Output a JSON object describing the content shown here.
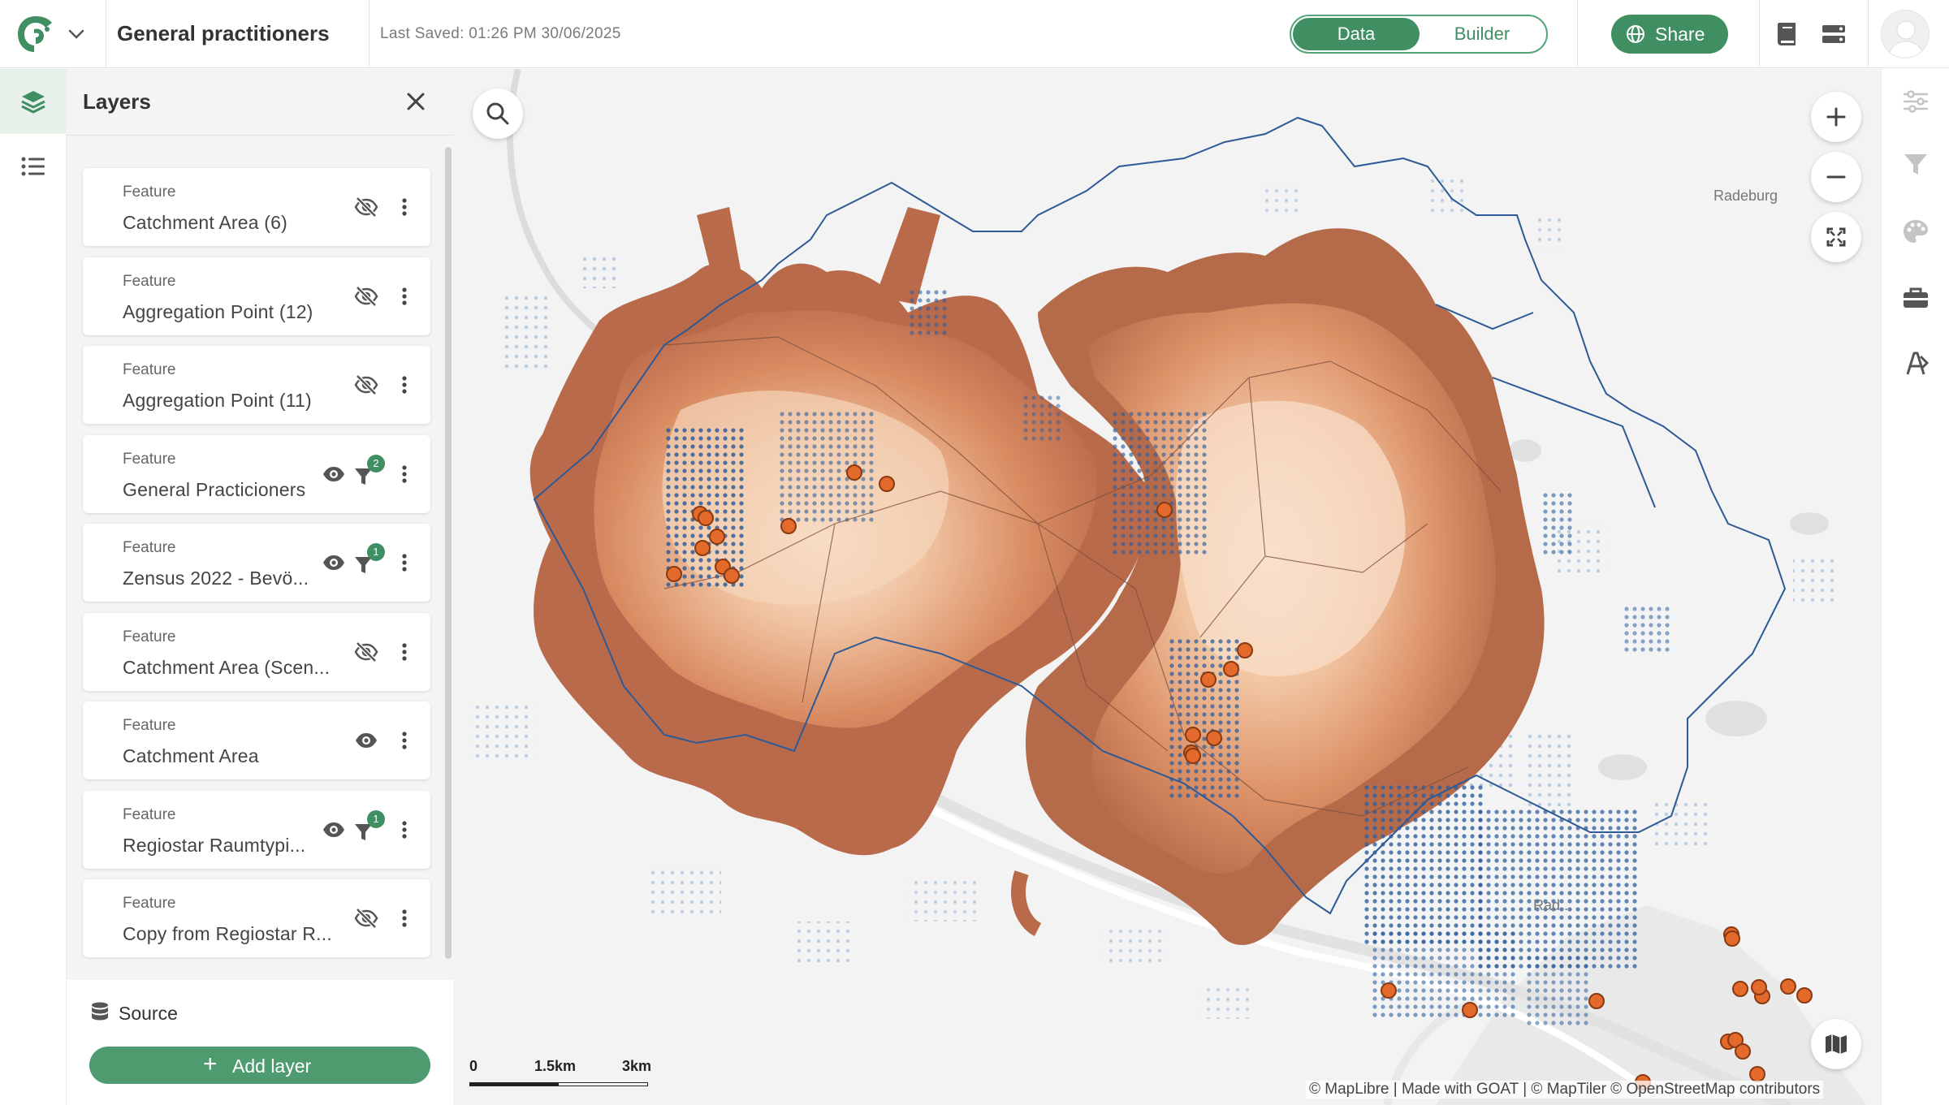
{
  "header": {
    "project_title": "General practitioners",
    "last_saved": "Last Saved: 01:26 PM 30/06/2025",
    "view_toggle": {
      "data_label": "Data",
      "builder_label": "Builder",
      "active": "Data"
    },
    "share_label": "Share"
  },
  "layers_panel": {
    "title": "Layers",
    "layers": [
      {
        "type": "Feature",
        "name": "Catchment Area (6)",
        "visible": false,
        "filters": 0
      },
      {
        "type": "Feature",
        "name": "Aggregation Point (12)",
        "visible": false,
        "filters": 0
      },
      {
        "type": "Feature",
        "name": "Aggregation Point (11)",
        "visible": false,
        "filters": 0
      },
      {
        "type": "Feature",
        "name": "General Practicioners",
        "visible": true,
        "filters": 2,
        "filter_badge": "2"
      },
      {
        "type": "Feature",
        "name": "Zensus 2022 - Bevö...",
        "visible": true,
        "filters": 1,
        "filter_badge": "1"
      },
      {
        "type": "Feature",
        "name": "Catchment Area (Scen...",
        "visible": false,
        "filters": 0
      },
      {
        "type": "Feature",
        "name": "Catchment Area",
        "visible": true,
        "filters": 0
      },
      {
        "type": "Feature",
        "name": "Regiostar Raumtypi...",
        "visible": true,
        "filters": 1,
        "filter_badge": "1"
      },
      {
        "type": "Feature",
        "name": "Copy from Regiostar R...",
        "visible": false,
        "filters": 0
      }
    ],
    "source_label": "Source",
    "add_layer_label": "Add layer"
  },
  "map": {
    "place_labels": {
      "radeburg": "Radeburg",
      "radebeul": "Rad..."
    },
    "scale": {
      "zero": "0",
      "mid": "1.5km",
      "end": "3km"
    },
    "attribution": "© MapLibre | Made with GOAT | © MapTiler © OpenStreetMap contributors"
  },
  "colors": {
    "brand_green": "#3f8f62",
    "catchment_dark": "#b56a4a",
    "catchment_light": "#f6dcc6",
    "practitioner_marker": "#e36a2a",
    "census_blue": "#2f5f9e",
    "boundary_line": "#2d5a96"
  }
}
